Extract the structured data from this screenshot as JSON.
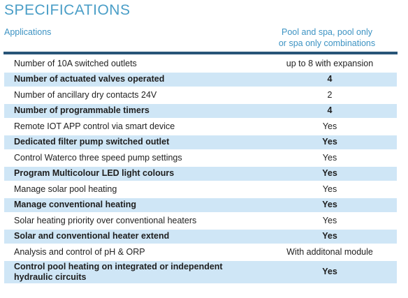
{
  "title": "SPECIFICATIONS",
  "header": {
    "left": "Applications",
    "right_line1": "Pool and spa, pool only",
    "right_line2": "or spa only combinations"
  },
  "rows": [
    {
      "label": "Number of 10A switched outlets",
      "value": "up to 8 with expansion"
    },
    {
      "label": "Number of actuated valves operated",
      "value": "4"
    },
    {
      "label": "Number of ancillary dry contacts 24V",
      "value": "2"
    },
    {
      "label": "Number of programmable timers",
      "value": "4"
    },
    {
      "label": "Remote IOT APP control via smart device",
      "value": "Yes"
    },
    {
      "label": "Dedicated filter pump switched outlet",
      "value": "Yes"
    },
    {
      "label": "Control Waterco three speed pump settings",
      "value": "Yes"
    },
    {
      "label": "Program Multicolour LED light colours",
      "value": "Yes"
    },
    {
      "label": "Manage solar pool heating",
      "value": "Yes"
    },
    {
      "label": "Manage conventional heating",
      "value": "Yes"
    },
    {
      "label": "Solar heating priority over conventional heaters",
      "value": "Yes"
    },
    {
      "label": "Solar and conventional heater extend",
      "value": "Yes"
    },
    {
      "label": "Analysis and control of pH & ORP",
      "value": "With additonal module"
    },
    {
      "label_line1": "Control pool heating on integrated or independent",
      "label_line2": "hydraulic circuits",
      "value": "Yes"
    }
  ],
  "colors": {
    "title": "#4a9ec7",
    "header_text": "#3d93c3",
    "rule": "#285578",
    "shaded_row": "#cfe6f6"
  }
}
